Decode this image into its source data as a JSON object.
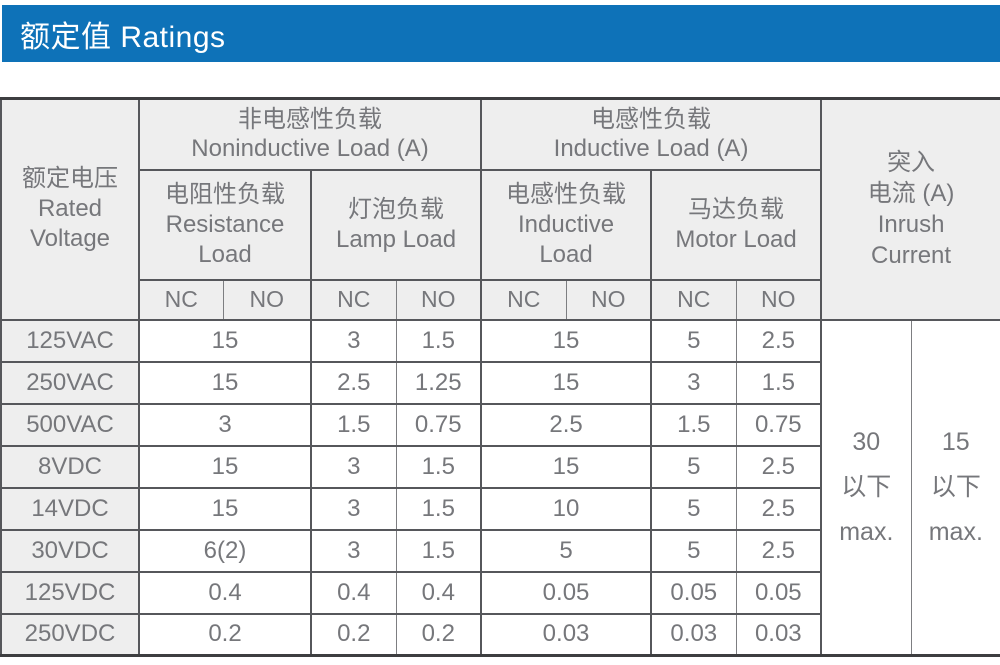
{
  "title_bar": {
    "label": "额定值 Ratings"
  },
  "colors": {
    "accent_blue": "#0e72b8",
    "header_bg": "#eeeeee",
    "text_gray": "#76777b",
    "border_gray": "#56575b"
  },
  "table": {
    "voltage_header": {
      "lines": [
        "额定电压",
        "Rated",
        "Voltage"
      ]
    },
    "groups": [
      {
        "zh": "非电感性负载",
        "en": "Noninductive Load (A)"
      },
      {
        "zh": "电感性负载",
        "en": "Inductive Load (A)"
      }
    ],
    "sub_headers": [
      {
        "zh": "电阻性负载",
        "en_lines": [
          "Resistance",
          "Load"
        ]
      },
      {
        "zh": "灯泡负载",
        "en_lines": [
          "Lamp Load"
        ]
      },
      {
        "zh": "电感性负载",
        "en_lines": [
          "Inductive",
          "Load"
        ]
      },
      {
        "zh": "马达负载",
        "en_lines": [
          "Motor Load"
        ]
      }
    ],
    "contact_labels": {
      "nc": "NC",
      "no": "NO"
    },
    "inrush_header": {
      "lines": [
        "突入",
        "电流 (A)",
        "Inrush",
        "Current"
      ]
    },
    "inrush_cells": [
      {
        "lines": [
          "30",
          "以下",
          "max."
        ]
      },
      {
        "lines": [
          "15",
          "以下",
          "max."
        ]
      }
    ],
    "rows": [
      {
        "voltage": "125VAC",
        "resistance": "15",
        "lamp_nc": "3",
        "lamp_no": "1.5",
        "inductive": "15",
        "motor_nc": "5",
        "motor_no": "2.5"
      },
      {
        "voltage": "250VAC",
        "resistance": "15",
        "lamp_nc": "2.5",
        "lamp_no": "1.25",
        "inductive": "15",
        "motor_nc": "3",
        "motor_no": "1.5"
      },
      {
        "voltage": "500VAC",
        "resistance": "3",
        "lamp_nc": "1.5",
        "lamp_no": "0.75",
        "inductive": "2.5",
        "motor_nc": "1.5",
        "motor_no": "0.75"
      },
      {
        "voltage": "8VDC",
        "resistance": "15",
        "lamp_nc": "3",
        "lamp_no": "1.5",
        "inductive": "15",
        "motor_nc": "5",
        "motor_no": "2.5"
      },
      {
        "voltage": "14VDC",
        "resistance": "15",
        "lamp_nc": "3",
        "lamp_no": "1.5",
        "inductive": "10",
        "motor_nc": "5",
        "motor_no": "2.5"
      },
      {
        "voltage": "30VDC",
        "resistance": "6(2)",
        "lamp_nc": "3",
        "lamp_no": "1.5",
        "inductive": "5",
        "motor_nc": "5",
        "motor_no": "2.5"
      },
      {
        "voltage": "125VDC",
        "resistance": "0.4",
        "lamp_nc": "0.4",
        "lamp_no": "0.4",
        "inductive": "0.05",
        "motor_nc": "0.05",
        "motor_no": "0.05"
      },
      {
        "voltage": "250VDC",
        "resistance": "0.2",
        "lamp_nc": "0.2",
        "lamp_no": "0.2",
        "inductive": "0.03",
        "motor_nc": "0.03",
        "motor_no": "0.03"
      }
    ]
  }
}
